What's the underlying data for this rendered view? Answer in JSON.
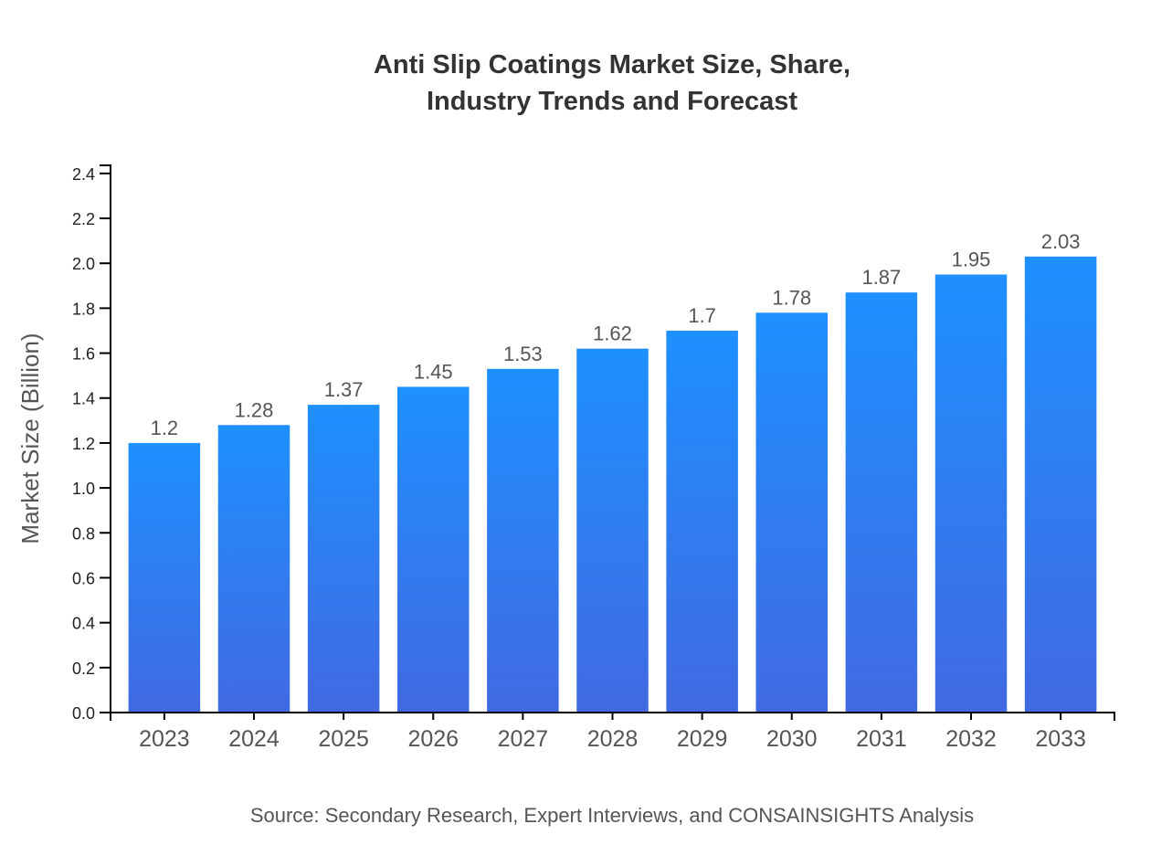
{
  "chart_data": {
    "type": "bar",
    "title_lines": [
      "Anti Slip Coatings Market Size, Share,",
      "Industry Trends and Forecast"
    ],
    "xlabel": "",
    "ylabel": "Market Size (Billion)",
    "categories": [
      "2023",
      "2024",
      "2025",
      "2026",
      "2027",
      "2028",
      "2029",
      "2030",
      "2031",
      "2032",
      "2033"
    ],
    "values": [
      1.2,
      1.28,
      1.37,
      1.45,
      1.53,
      1.62,
      1.7,
      1.78,
      1.87,
      1.95,
      2.03
    ],
    "data_labels": [
      "1.2",
      "1.28",
      "1.37",
      "1.45",
      "1.53",
      "1.62",
      "1.7",
      "1.78",
      "1.87",
      "1.95",
      "2.03"
    ],
    "ylim": [
      0,
      2.436
    ],
    "yticks": [
      "0.0",
      "0.2",
      "0.4",
      "0.6",
      "0.8",
      "1.0",
      "1.2",
      "1.4",
      "1.6",
      "1.8",
      "2.0",
      "2.2",
      "2.4"
    ],
    "grid": false,
    "colors": {
      "bar_top": "#1e90ff",
      "bar_bottom": "#4169e1"
    },
    "source": "Source: Secondary Research, Expert Interviews, and CONSAINSIGHTS Analysis"
  }
}
